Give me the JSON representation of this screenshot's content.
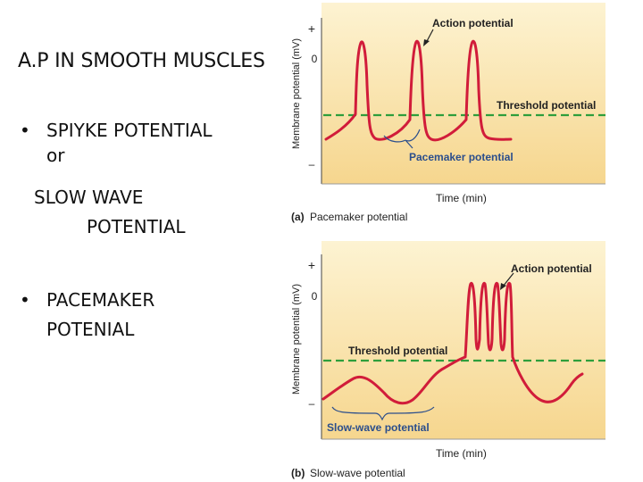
{
  "slide": {
    "title": "A.P IN SMOOTH MUSCLES",
    "bullets": [
      {
        "bullet": "•",
        "lines": [
          "SPIYKE POTENTIAL",
          "or",
          "SLOW WAVE",
          "POTENTIAL"
        ]
      },
      {
        "bullet": "•",
        "lines": [
          "PACEMAKER",
          "POTENIAL"
        ]
      }
    ]
  },
  "figure_a": {
    "y_axis_label": "Membrane potential (mV)",
    "y_plus": "+",
    "y_zero": "0",
    "y_minus": "–",
    "x_axis_label": "Time (min)",
    "annotation_action": "Action potential",
    "annotation_threshold": "Threshold potential",
    "annotation_pacemaker": "Pacemaker potential",
    "caption_letter": "(a)",
    "caption_text": "Pacemaker potential"
  },
  "figure_b": {
    "y_axis_label": "Membrane potential (mV)",
    "y_plus": "+",
    "y_zero": "0",
    "y_minus": "–",
    "x_axis_label": "Time (min)",
    "annotation_action": "Action potential",
    "annotation_threshold": "Threshold potential",
    "annotation_slowwave": "Slow-wave potential",
    "caption_letter": "(b)",
    "caption_text": "Slow-wave potential"
  },
  "colors": {
    "panel_top": "#fdf3d2",
    "panel_bottom": "#f6d68e",
    "trace": "#d11c3a",
    "threshold": "#2e9e3c",
    "annotation_blue": "#2b4e8c"
  }
}
